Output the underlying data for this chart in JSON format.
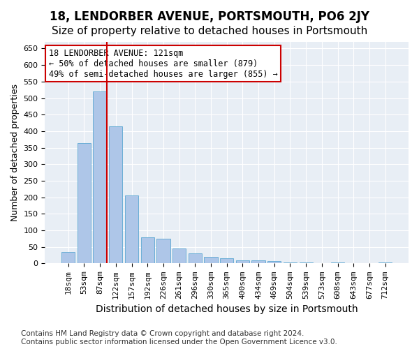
{
  "title": "18, LENDORBER AVENUE, PORTSMOUTH, PO6 2JY",
  "subtitle": "Size of property relative to detached houses in Portsmouth",
  "xlabel": "Distribution of detached houses by size in Portsmouth",
  "ylabel": "Number of detached properties",
  "categories": [
    "18sqm",
    "53sqm",
    "87sqm",
    "122sqm",
    "157sqm",
    "192sqm",
    "226sqm",
    "261sqm",
    "296sqm",
    "330sqm",
    "365sqm",
    "400sqm",
    "434sqm",
    "469sqm",
    "504sqm",
    "539sqm",
    "573sqm",
    "608sqm",
    "643sqm",
    "677sqm",
    "712sqm"
  ],
  "values": [
    35,
    365,
    520,
    415,
    205,
    80,
    75,
    45,
    30,
    20,
    15,
    10,
    10,
    8,
    4,
    4,
    0,
    3,
    0,
    0,
    3
  ],
  "bar_color": "#aec6e8",
  "bar_edge_color": "#6baed6",
  "background_color": "#e8eef5",
  "grid_color": "#ffffff",
  "vline_color": "#cc0000",
  "annotation_box_text": "18 LENDORBER AVENUE: 121sqm\n← 50% of detached houses are smaller (879)\n49% of semi-detached houses are larger (855) →",
  "annotation_box_color": "#cc0000",
  "footnote": "Contains HM Land Registry data © Crown copyright and database right 2024.\nContains public sector information licensed under the Open Government Licence v3.0.",
  "ylim": [
    0,
    670
  ],
  "yticks": [
    0,
    50,
    100,
    150,
    200,
    250,
    300,
    350,
    400,
    450,
    500,
    550,
    600,
    650
  ],
  "title_fontsize": 12,
  "subtitle_fontsize": 11,
  "xlabel_fontsize": 10,
  "ylabel_fontsize": 9,
  "tick_fontsize": 8,
  "annotation_fontsize": 8.5,
  "footnote_fontsize": 7.5
}
